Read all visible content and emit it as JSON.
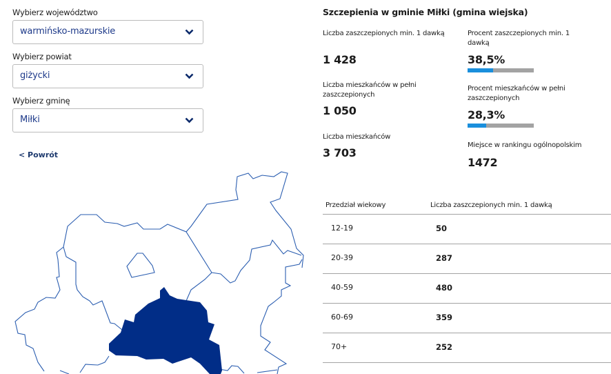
{
  "filters": [
    {
      "label": "Wybierz województwo",
      "value": "warmińsko-mazurskie"
    },
    {
      "label": "Wybierz powiat",
      "value": "giżycki"
    },
    {
      "label": "Wybierz gminę",
      "value": "Miłki"
    }
  ],
  "back_label": "< Powrót",
  "stats": {
    "title": "Szczepienia w gminie Miłki (gmina wiejska)",
    "vaccinated_1dose_label": "Liczba zaszczepionych min. 1 dawką",
    "vaccinated_1dose_value": "1 428",
    "fully_label": "Liczba mieszkańców w pełni zaszczepionych",
    "fully_value": "1 050",
    "population_label": "Liczba mieszkańców",
    "population_value": "3 703",
    "pct_1dose_label": "Procent zaszczepionych min. 1 dawką",
    "pct_1dose_value": "38,5%",
    "pct_1dose_fraction": 0.385,
    "pct_fully_label": "Procent mieszkańców w pełni zaszczepionych",
    "pct_fully_value": "28,3%",
    "pct_fully_fraction": 0.283,
    "rank_label": "Miejsce w rankingu ogólnopolskim",
    "rank_value": "1472"
  },
  "table": {
    "headers": [
      "Przedział wiekowy",
      "Liczba zaszczepionych min. 1 dawką"
    ],
    "rows": [
      [
        "12-19",
        "50"
      ],
      [
        "20-39",
        "287"
      ],
      [
        "40-59",
        "480"
      ],
      [
        "60-69",
        "359"
      ],
      [
        "70+",
        "252"
      ]
    ]
  },
  "colors": {
    "accent": "#1a8fdc",
    "selected_region": "#012d87",
    "border": "#2a5db0",
    "bar_bg": "#a3a3a3"
  }
}
